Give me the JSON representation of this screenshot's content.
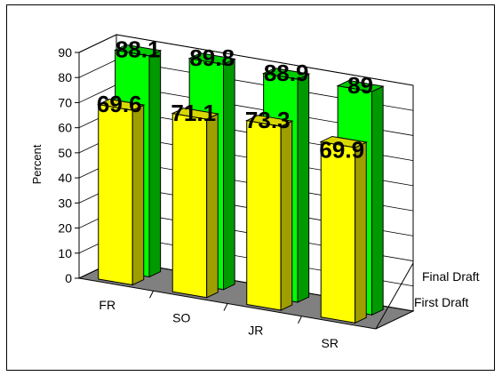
{
  "chart_data": {
    "type": "bar",
    "categories": [
      "FR",
      "SO",
      "JR",
      "SR"
    ],
    "series": [
      {
        "name": "First Draft",
        "values": [
          69.6,
          71.1,
          73.3,
          69.9
        ]
      },
      {
        "name": "Final Draft",
        "values": [
          88.1,
          89.8,
          88.9,
          89
        ]
      }
    ],
    "data_labels": {
      "First Draft": [
        "69.6",
        "71.1",
        "73.3",
        "69.9"
      ],
      "Final Draft": [
        "88.1",
        "89.8",
        "88.9",
        "89"
      ]
    },
    "ylabel": "Percent",
    "ylim": [
      0,
      90
    ],
    "yticks": [
      0,
      10,
      20,
      30,
      40,
      50,
      60,
      70,
      80,
      90
    ],
    "depth_axis_labels": [
      "Final Draft",
      "First Draft"
    ],
    "grid": true,
    "colors": {
      "first_front": "#ffff00",
      "first_side": "#9e9e00",
      "first_top": "#d8d800",
      "final_front": "#00ff00",
      "final_side": "#009a00",
      "final_top": "#00cc00",
      "floor": "#808080",
      "wall": "#ffffff",
      "grid": "#000000"
    }
  }
}
